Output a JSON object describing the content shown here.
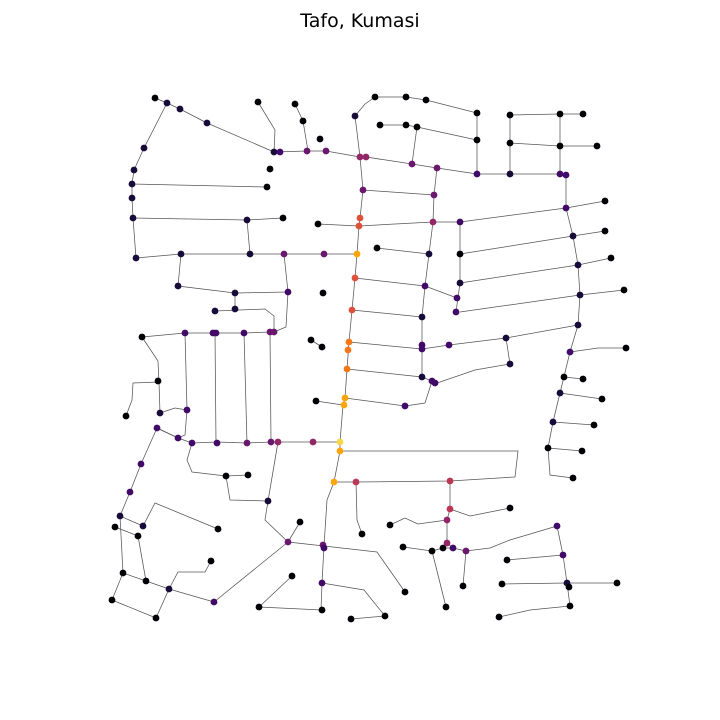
{
  "figure": {
    "title": "Tafo, Kumasi",
    "background": "#ffffff",
    "edge_color": "#555555",
    "colormap": "inferno",
    "node_colors": {
      "c0": "#000004",
      "c1": "#160b39",
      "c2": "#420a68",
      "c3": "#6a176e",
      "c4": "#932667",
      "c5": "#bc3754",
      "c6": "#dd513a",
      "c7": "#f37819",
      "c8": "#fca50a",
      "c9": "#f6d746"
    }
  }
}
